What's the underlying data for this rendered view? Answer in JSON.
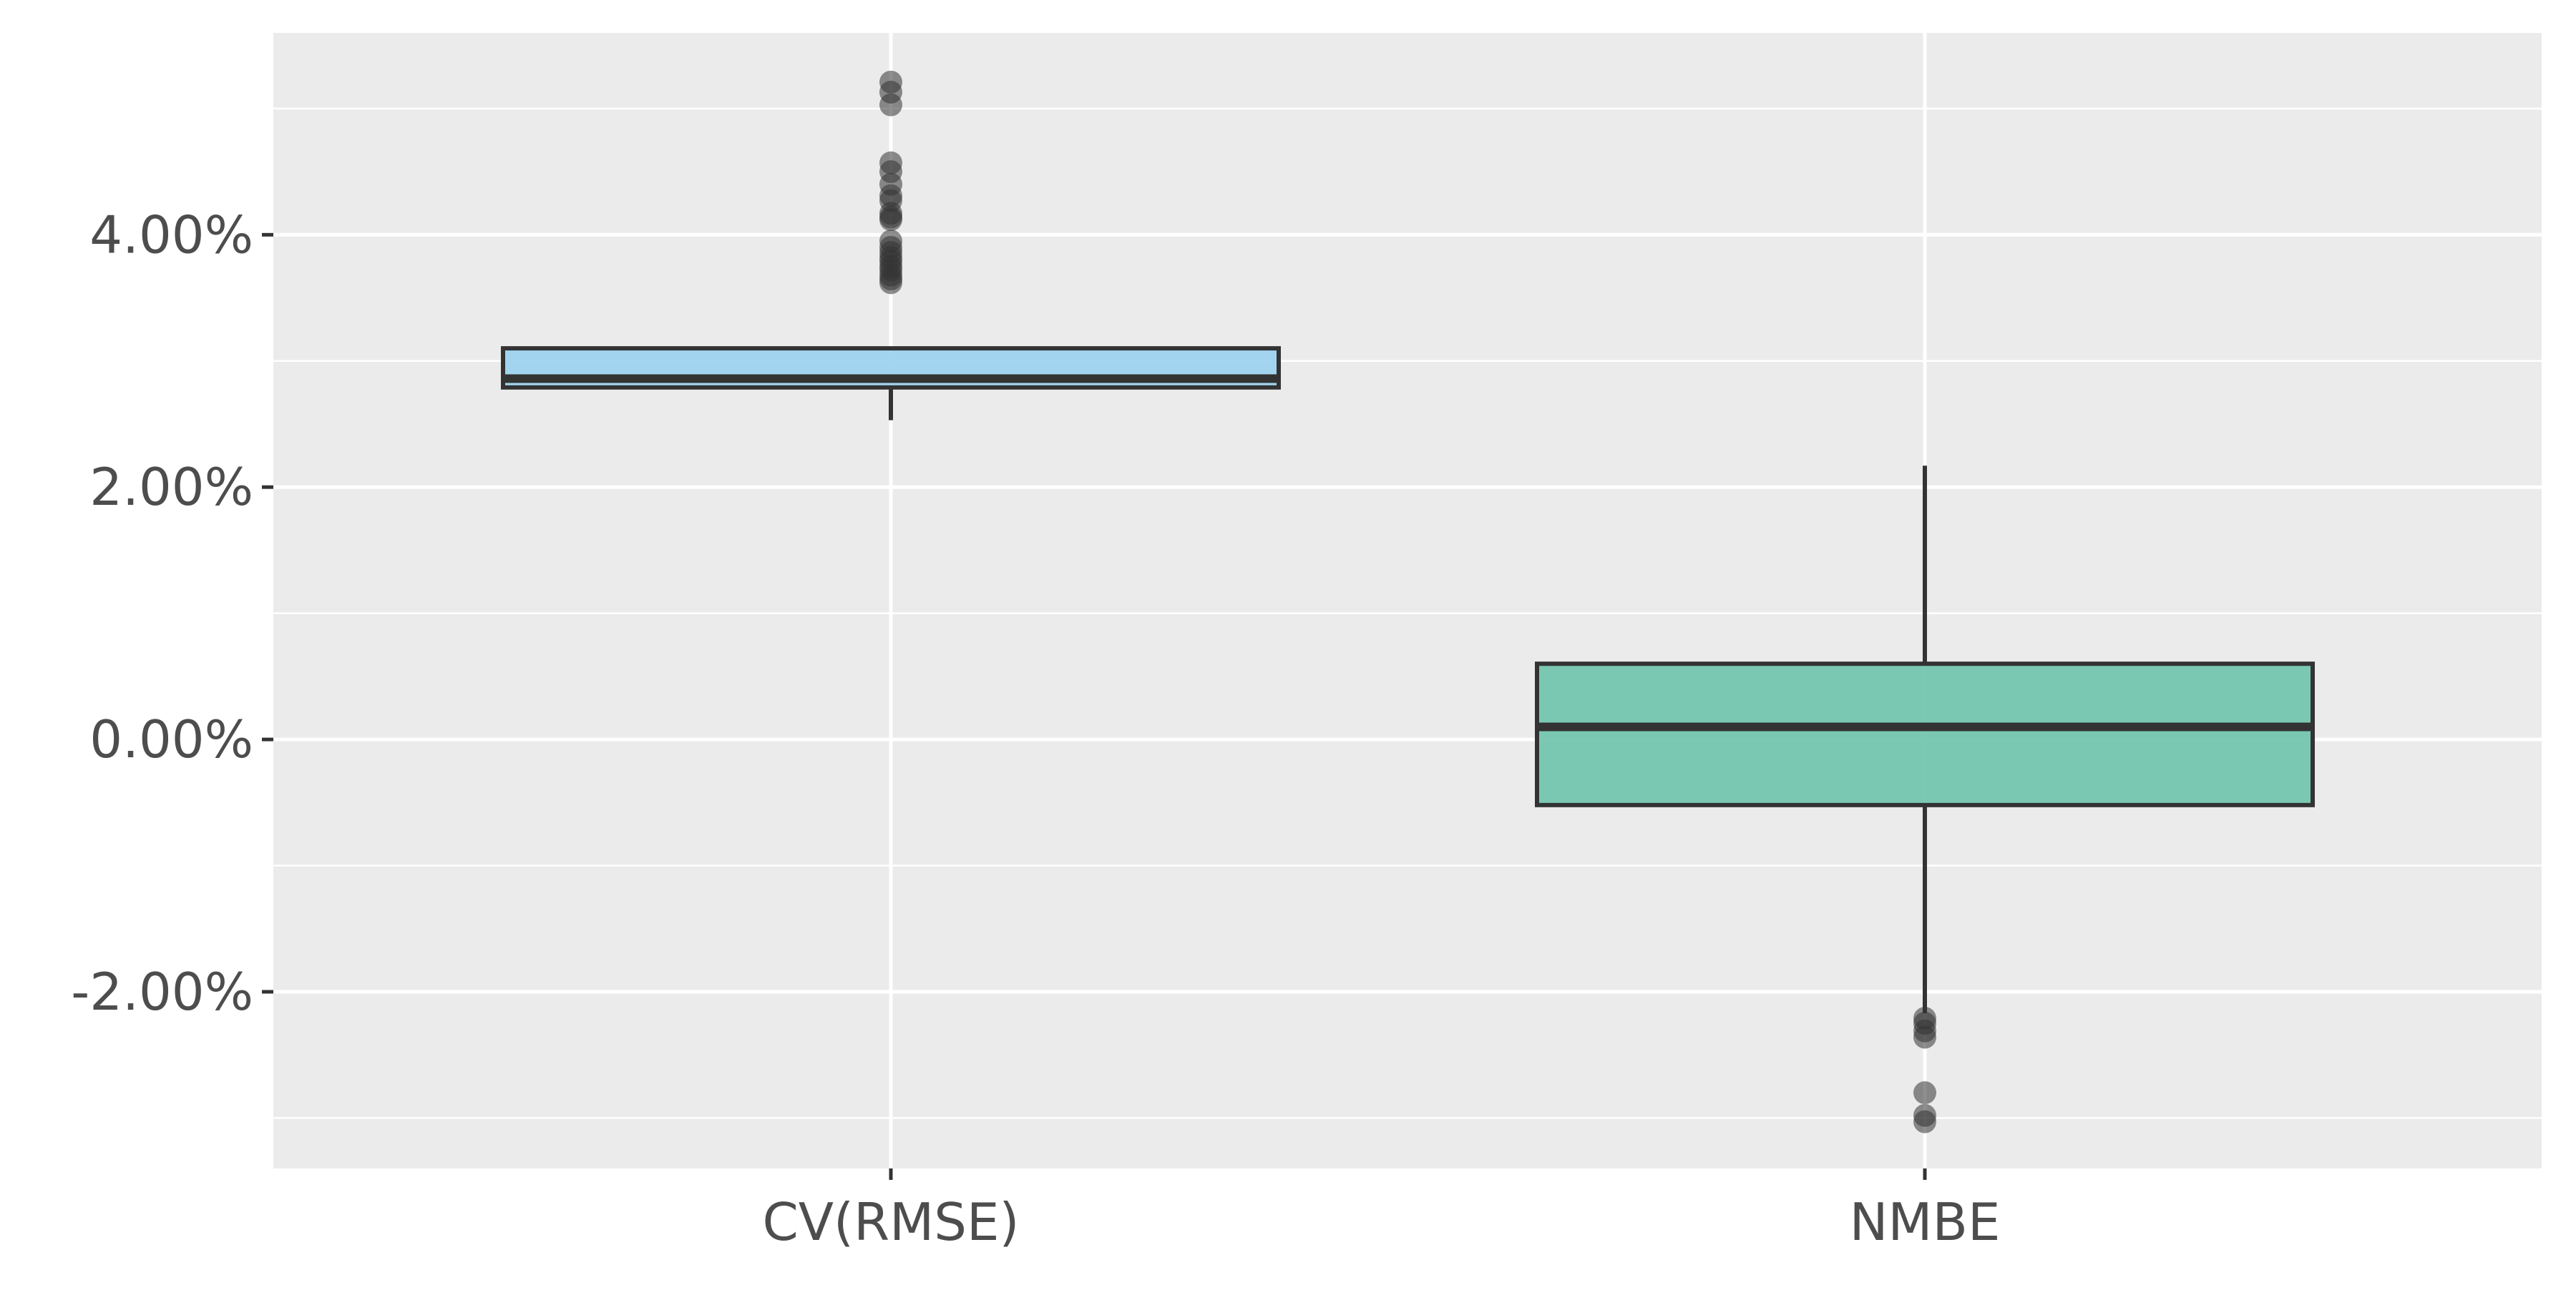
{
  "chart_data": {
    "type": "box",
    "title": "",
    "xlabel": "",
    "ylabel": "",
    "ylim": [
      -3.4,
      5.6
    ],
    "yticks": [
      -2,
      0,
      2,
      4
    ],
    "ytick_labels": [
      "-2.00%",
      "0.00%",
      "2.00%",
      "4.00%"
    ],
    "y_minor_grid": [
      -3,
      -1,
      1,
      3,
      5
    ],
    "grid": true,
    "legend": "none",
    "background_color": "#EBEBEB",
    "grid_color": "#FFFFFF",
    "categories": [
      "CV(RMSE)",
      "NMBE"
    ],
    "boxes": [
      {
        "name": "CV(RMSE)",
        "color": "#9ED3F0",
        "whisker_low": 2.53,
        "q1": 2.79,
        "median": 2.86,
        "q3": 3.1,
        "whisker_high": 3.1,
        "outliers": [
          5.21,
          5.13,
          5.03,
          4.57,
          4.5,
          4.4,
          4.31,
          4.27,
          4.17,
          4.14,
          4.12,
          3.95,
          3.9,
          3.86,
          3.82,
          3.79,
          3.75,
          3.72,
          3.68,
          3.65,
          3.62
        ]
      },
      {
        "name": "NMBE",
        "color": "#75C6AF",
        "whisker_low": -2.17,
        "q1": -0.52,
        "median": 0.1,
        "q3": 0.6,
        "whisker_high": 2.17,
        "outliers": [
          -2.21,
          -2.25,
          -2.31,
          -2.36,
          -2.8,
          -2.98,
          -3.03
        ]
      }
    ]
  }
}
